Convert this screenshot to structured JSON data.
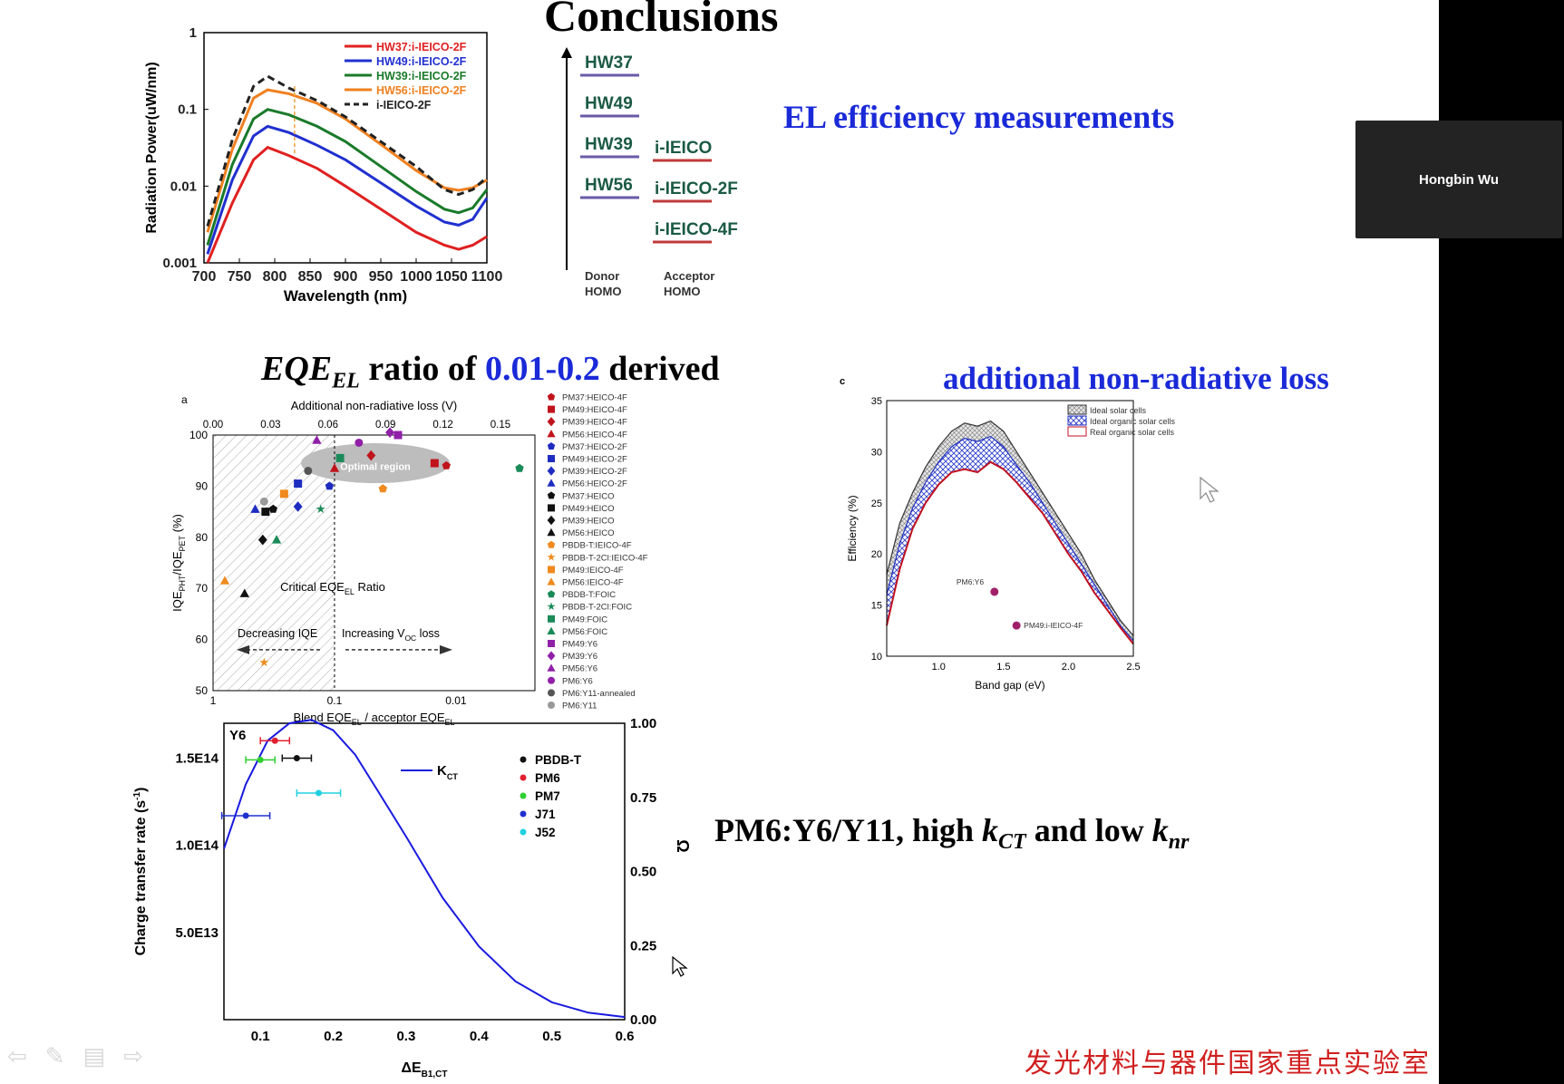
{
  "slide": {
    "title": "Conclusions",
    "el_efficiency": "EL efficiency measurements",
    "eqe_prefix": "EQE",
    "eqe_sub": "EL",
    "eqe_mid": " ratio of ",
    "eqe_range": "0.01-0.2",
    "eqe_suffix": " derived",
    "nonrad": "additional non-radiative loss",
    "pm6_prefix": "PM6:Y6/Y11, high ",
    "pm6_k": "k",
    "pm6_ct": "CT",
    "pm6_mid": " and low ",
    "pm6_nr": "nr",
    "lab": "发光材料与器件国家重点实验室"
  },
  "video": {
    "name": "Hongbin Wu"
  },
  "energy_diagram": {
    "donors": [
      "HW37",
      "HW49",
      "HW39",
      "HW56"
    ],
    "acceptors": [
      "i-IEICO",
      "i-IEICO-2F",
      "i-IEICO-4F"
    ],
    "donor_label": [
      "Donor",
      "HOMO"
    ],
    "acceptor_label": [
      "Acceptor",
      "HOMO"
    ]
  },
  "chart_data": [
    {
      "type": "line",
      "id": "radiation-power",
      "xlabel": "Wavelength (nm)",
      "ylabel": "Radiation Power(uW/nm)",
      "xlim": [
        700,
        1100
      ],
      "ylim": [
        0.001,
        1
      ],
      "yscale": "log",
      "xticks": [
        "700",
        "750",
        "800",
        "850",
        "900",
        "950",
        "1000",
        "1050",
        "1100"
      ],
      "yticks": [
        "0.001",
        "0.01",
        "0.1",
        "1"
      ],
      "legend_position": "top-right",
      "series": [
        {
          "name": "HW37:i-IEICO-2F",
          "color": "#e02020",
          "x": [
            705,
            740,
            770,
            790,
            820,
            860,
            900,
            950,
            1000,
            1040,
            1060,
            1080,
            1100
          ],
          "y": [
            0.001,
            0.006,
            0.022,
            0.032,
            0.025,
            0.017,
            0.01,
            0.005,
            0.0025,
            0.0017,
            0.0015,
            0.0017,
            0.0022
          ]
        },
        {
          "name": "HW49:i-IEICO-2F",
          "color": "#2030d0",
          "x": [
            705,
            740,
            770,
            790,
            820,
            860,
            900,
            950,
            1000,
            1040,
            1060,
            1080,
            1100
          ],
          "y": [
            0.0013,
            0.012,
            0.045,
            0.06,
            0.05,
            0.034,
            0.022,
            0.011,
            0.0055,
            0.0034,
            0.0031,
            0.0037,
            0.007
          ]
        },
        {
          "name": "HW39:i-IEICO-2F",
          "color": "#1a7a2a",
          "x": [
            705,
            740,
            770,
            790,
            820,
            860,
            900,
            950,
            1000,
            1040,
            1060,
            1080,
            1100
          ],
          "y": [
            0.0017,
            0.019,
            0.075,
            0.1,
            0.085,
            0.06,
            0.038,
            0.018,
            0.0085,
            0.005,
            0.0045,
            0.0052,
            0.009
          ]
        },
        {
          "name": "HW56:i-IEICO-2F",
          "color": "#f08020",
          "x": [
            705,
            740,
            770,
            790,
            820,
            860,
            900,
            950,
            1000,
            1040,
            1060,
            1080,
            1100
          ],
          "y": [
            0.0025,
            0.03,
            0.14,
            0.18,
            0.16,
            0.12,
            0.075,
            0.035,
            0.016,
            0.0095,
            0.0088,
            0.0095,
            0.012
          ]
        },
        {
          "name": "i-IEICO-2F",
          "color": "#222222",
          "dashed": true,
          "x": [
            705,
            740,
            770,
            790,
            820,
            860,
            900,
            950,
            1000,
            1040,
            1060,
            1080,
            1100
          ],
          "y": [
            0.003,
            0.04,
            0.2,
            0.27,
            0.19,
            0.13,
            0.08,
            0.038,
            0.018,
            0.009,
            0.0078,
            0.009,
            0.013
          ]
        }
      ]
    },
    {
      "type": "scatter",
      "id": "iqe-vs-eqe",
      "panel": "a",
      "xlabel": "Blend EQE",
      "xlabel_sub": "EL",
      "xlabel_tail": " / acceptor EQE",
      "xlabel_tail_sub": "EL",
      "ylabel": "IQE",
      "ylabel_sub1": "PHT",
      "ylabel_mid": "/IQE",
      "ylabel_sub2": "PET",
      "ylabel_tail": " (%)",
      "top_axis_label": "Additional non-radiative loss (V)",
      "top_ticks": [
        "0.00",
        "0.03",
        "0.06",
        "0.09",
        "0.12",
        "0.15"
      ],
      "bottom_ticks": [
        "1",
        "0.1",
        "0.01"
      ],
      "yticks": [
        "50",
        "60",
        "70",
        "80",
        "90",
        "100"
      ],
      "ylim": [
        50,
        100
      ],
      "annotations": {
        "optimal": "Optimal region",
        "critical": "Critical EQE",
        "critical_sub": "EL",
        "critical_tail": " Ratio",
        "decreasing": "Decreasing IQE",
        "increasing": "Increasing V",
        "increasing_sub": "OC",
        "increasing_tail": " loss"
      },
      "legend": [
        {
          "name": "PM37:HEICO-4F",
          "color": "#c0141c",
          "shape": "pentagon"
        },
        {
          "name": "PM49:HEICO-4F",
          "color": "#c0141c",
          "shape": "square"
        },
        {
          "name": "PM39:HEICO-4F",
          "color": "#c0141c",
          "shape": "diamond"
        },
        {
          "name": "PM56:HEICO-4F",
          "color": "#c0141c",
          "shape": "triangle"
        },
        {
          "name": "PM37:HEICO-2F",
          "color": "#1e2cc0",
          "shape": "pentagon"
        },
        {
          "name": "PM49:HEICO-2F",
          "color": "#1e2cc0",
          "shape": "square"
        },
        {
          "name": "PM39:HEICO-2F",
          "color": "#1e2cc0",
          "shape": "diamond"
        },
        {
          "name": "PM56:HEICO-2F",
          "color": "#1e2cc0",
          "shape": "triangle"
        },
        {
          "name": "PM37:HEICO",
          "color": "#111111",
          "shape": "pentagon"
        },
        {
          "name": "PM49:HEICO",
          "color": "#111111",
          "shape": "square"
        },
        {
          "name": "PM39:HEICO",
          "color": "#111111",
          "shape": "diamond"
        },
        {
          "name": "PM56:HEICO",
          "color": "#111111",
          "shape": "triangle"
        },
        {
          "name": "PBDB-T:IEICO-4F",
          "color": "#f08a1e",
          "shape": "pentagon"
        },
        {
          "name": "PBDB-T-2Cl:IEICO-4F",
          "color": "#f08a1e",
          "shape": "star"
        },
        {
          "name": "PM49:IEICO-4F",
          "color": "#f08a1e",
          "shape": "square"
        },
        {
          "name": "PM56:IEICO-4F",
          "color": "#f08a1e",
          "shape": "triangle"
        },
        {
          "name": "PBDB-T:FOIC",
          "color": "#1a8a58",
          "shape": "pentagon"
        },
        {
          "name": "PBDB-T-2Cl:FOIC",
          "color": "#1a8a58",
          "shape": "star"
        },
        {
          "name": "PM49:FOIC",
          "color": "#1a8a58",
          "shape": "square"
        },
        {
          "name": "PM56:FOIC",
          "color": "#1a8a58",
          "shape": "triangle"
        },
        {
          "name": "PM49:Y6",
          "color": "#9020a8",
          "shape": "square"
        },
        {
          "name": "PM39:Y6",
          "color": "#9020a8",
          "shape": "diamond"
        },
        {
          "name": "PM56:Y6",
          "color": "#9020a8",
          "shape": "triangle"
        },
        {
          "name": "PM6:Y6",
          "color": "#9020a8",
          "shape": "circle"
        },
        {
          "name": "PM6:Y11-annealed",
          "color": "#555555",
          "shape": "circle"
        },
        {
          "name": "PM6:Y11",
          "color": "#999999",
          "shape": "circle"
        }
      ],
      "points": [
        {
          "s": 0,
          "x": 0.012,
          "y": 94
        },
        {
          "s": 1,
          "x": 0.015,
          "y": 94.5
        },
        {
          "s": 2,
          "x": 0.05,
          "y": 96
        },
        {
          "s": 3,
          "x": 0.1,
          "y": 93.5
        },
        {
          "s": 4,
          "x": 0.11,
          "y": 90
        },
        {
          "s": 5,
          "x": 0.2,
          "y": 90.5
        },
        {
          "s": 6,
          "x": 0.2,
          "y": 86
        },
        {
          "s": 7,
          "x": 0.45,
          "y": 85.5
        },
        {
          "s": 8,
          "x": 0.32,
          "y": 85.5
        },
        {
          "s": 9,
          "x": 0.37,
          "y": 85
        },
        {
          "s": 10,
          "x": 0.39,
          "y": 79.5
        },
        {
          "s": 11,
          "x": 0.55,
          "y": 69
        },
        {
          "s": 12,
          "x": 0.04,
          "y": 89.5
        },
        {
          "s": 13,
          "x": 0.38,
          "y": 55.5
        },
        {
          "s": 14,
          "x": 0.26,
          "y": 88.5
        },
        {
          "s": 15,
          "x": 0.8,
          "y": 71.5
        },
        {
          "s": 16,
          "x": 0.003,
          "y": 93.5
        },
        {
          "s": 17,
          "x": 0.13,
          "y": 85.5
        },
        {
          "s": 18,
          "x": 0.09,
          "y": 95.5
        },
        {
          "s": 19,
          "x": 0.3,
          "y": 79.5
        },
        {
          "s": 20,
          "x": 0.03,
          "y": 100
        },
        {
          "s": 21,
          "x": 0.035,
          "y": 100.5
        },
        {
          "s": 22,
          "x": 0.14,
          "y": 99
        },
        {
          "s": 23,
          "x": 0.063,
          "y": 98.5
        },
        {
          "s": 24,
          "x": 0.165,
          "y": 93
        },
        {
          "s": 25,
          "x": 0.38,
          "y": 87
        }
      ]
    },
    {
      "type": "area",
      "id": "efficiency-vs-bandgap",
      "panel": "c",
      "xlabel": "Band gap (eV)",
      "ylabel": "Efficiency (%)",
      "xlim": [
        0.6,
        2.5
      ],
      "ylim": [
        10,
        35
      ],
      "xticks": [
        "1.0",
        "1.5",
        "2.0",
        "2.5"
      ],
      "yticks": [
        "10",
        "15",
        "20",
        "25",
        "30",
        "35"
      ],
      "legend": [
        "Ideal solar cells",
        "Ideal organic solar cells",
        "Real organic solar cells"
      ],
      "x": [
        0.6,
        0.7,
        0.8,
        0.9,
        1.0,
        1.1,
        1.2,
        1.3,
        1.4,
        1.5,
        1.6,
        1.7,
        1.8,
        1.9,
        2.0,
        2.1,
        2.2,
        2.3,
        2.4,
        2.5
      ],
      "ideal": [
        18,
        23,
        26,
        28.5,
        30.5,
        32,
        32.8,
        32.5,
        33,
        32,
        30,
        28,
        26,
        24,
        22,
        20,
        17.5,
        15.5,
        13.5,
        12
      ],
      "ideal_organic": [
        16,
        21,
        24.5,
        27,
        29,
        30.5,
        31.3,
        31,
        31.5,
        30.5,
        28.7,
        27,
        25,
        23,
        21,
        19,
        17,
        15,
        13,
        11.5
      ],
      "real_organic": [
        13,
        18.5,
        22.5,
        25,
        26.8,
        28,
        28.3,
        28,
        29,
        28.3,
        27,
        25.5,
        24,
        22,
        20,
        18.3,
        16.2,
        14.5,
        12.8,
        11.2
      ],
      "points": [
        {
          "label": "PM6:Y6",
          "x": 1.43,
          "y": 16.3
        },
        {
          "label": "PM49:i-IEICO-4F",
          "x": 1.6,
          "y": 13
        }
      ]
    },
    {
      "type": "scatter",
      "id": "charge-transfer-rate",
      "panel": "Y6",
      "xlabel": "ΔE",
      "xlabel_sub": "B1,CT",
      "ylabel": "Charge transfer rate (s",
      "ylabel_sup": "-1",
      "ylabel_tail": ")",
      "ylabel_right": "Ω",
      "xlim": [
        0.05,
        0.6
      ],
      "ylim_left": [
        0,
        170000000000000.0
      ],
      "ylim_right": [
        0,
        1
      ],
      "xticks": [
        "0.1",
        "0.2",
        "0.3",
        "0.4",
        "0.5",
        "0.6"
      ],
      "yticks_left": [
        "5.0E13",
        "1.0E14",
        "1.5E14"
      ],
      "yticks_right": [
        "0.00",
        "0.25",
        "0.50",
        "0.75",
        "1.00"
      ],
      "curve_label": "K",
      "curve_label_sub": "CT",
      "curve": {
        "x": [
          0.05,
          0.08,
          0.11,
          0.14,
          0.17,
          0.2,
          0.23,
          0.26,
          0.3,
          0.35,
          0.4,
          0.45,
          0.5,
          0.55,
          0.6
        ],
        "y": [
          98000000000000.0,
          135000000000000.0,
          160000000000000.0,
          170000000000000.0,
          172000000000000.0,
          166000000000000.0,
          152000000000000.0,
          132000000000000.0,
          105000000000000.0,
          70000000000000.0,
          42000000000000.0,
          22000000000000.0,
          10000000000000.0,
          4000000000000.0,
          1500000000000.0
        ]
      },
      "series": [
        {
          "name": "PBDB-T",
          "color": "#111111",
          "x": 0.15,
          "y": 150000000000000.0,
          "xerr": 0.02
        },
        {
          "name": "PM6",
          "color": "#e02030",
          "x": 0.12,
          "y": 160000000000000.0,
          "xerr": 0.02
        },
        {
          "name": "PM7",
          "color": "#30d030",
          "x": 0.1,
          "y": 149000000000000.0,
          "xerr": 0.02
        },
        {
          "name": "J71",
          "color": "#2030d0",
          "x": 0.08,
          "y": 117000000000000.0,
          "xerr": 0.033
        },
        {
          "name": "J52",
          "color": "#20d0e0",
          "x": 0.18,
          "y": 130000000000000.0,
          "xerr": 0.03
        }
      ]
    }
  ]
}
